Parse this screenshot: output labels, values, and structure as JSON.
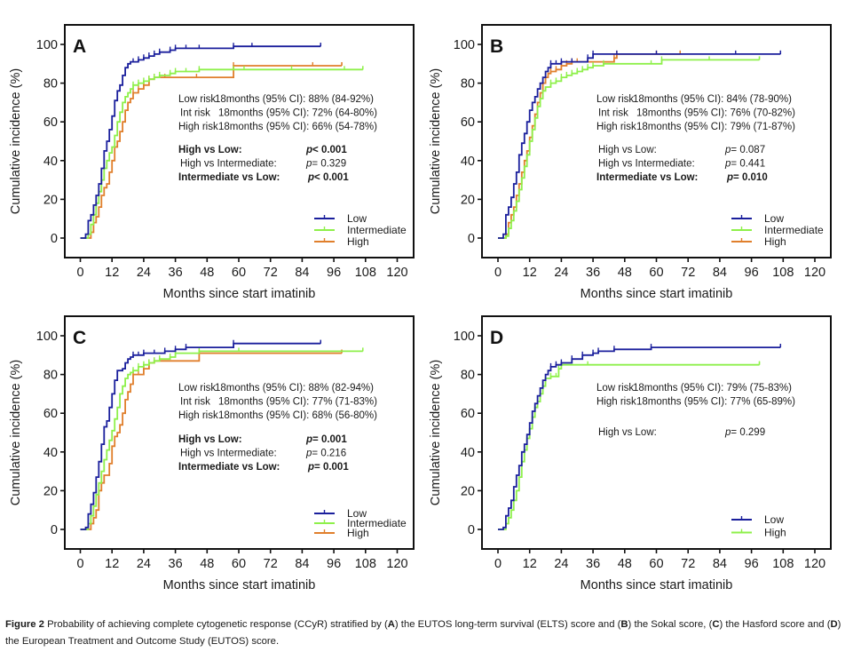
{
  "figure": {
    "caption_label": "Figure 2",
    "caption_parts": [
      {
        "t": " Probability of achieving complete cytogenetic response (CCyR) stratified by (",
        "b": false
      },
      {
        "t": "A",
        "b": true
      },
      {
        "t": ") the EUTOS long-term survival (ELTS) score and (",
        "b": false
      },
      {
        "t": "B",
        "b": true
      },
      {
        "t": ") the Sokal score, (",
        "b": false
      },
      {
        "t": "C",
        "b": true
      },
      {
        "t": ") the Hasford score and (",
        "b": false
      },
      {
        "t": "D",
        "b": true
      },
      {
        "t": ") the European Treatment and Outcome Study (EUTOS) score.",
        "b": false
      }
    ]
  },
  "colors": {
    "Low": "#1a1f9c",
    "Intermediate": "#8ef04a",
    "High": "#e07f2c"
  },
  "chart_data": [
    {
      "type": "line",
      "panel": "A",
      "xlabel": "Months since start imatinib",
      "ylabel": "Cumulative incidence (%)",
      "xlim": [
        0,
        120
      ],
      "ylim": [
        0,
        100
      ],
      "xticks": [
        0,
        12,
        24,
        36,
        48,
        60,
        72,
        84,
        96,
        108,
        120
      ],
      "yticks": [
        0,
        20,
        40,
        60,
        80,
        100
      ],
      "grid": false,
      "legend_position": "bottom-right",
      "legend": [
        "Low",
        "Intermediate",
        "High"
      ],
      "series": [
        {
          "name": "Low",
          "x": [
            0,
            2,
            3,
            4,
            5,
            6,
            7,
            8,
            9,
            10,
            11,
            12,
            13,
            14,
            15,
            16,
            17,
            18,
            19,
            20,
            22,
            24,
            26,
            28,
            30,
            34,
            36,
            40,
            45,
            58,
            65,
            91
          ],
          "y": [
            0,
            2,
            9,
            12,
            17,
            22,
            28,
            36,
            45,
            50,
            56,
            63,
            71,
            76,
            79,
            84,
            88,
            90,
            91,
            91,
            92,
            93,
            94,
            95,
            96,
            97,
            98,
            98,
            98,
            99,
            99,
            99
          ]
        },
        {
          "name": "Intermediate",
          "x": [
            0,
            3,
            4,
            5,
            6,
            7,
            8,
            9,
            10,
            11,
            12,
            13,
            14,
            15,
            16,
            17,
            18,
            19,
            20,
            22,
            24,
            26,
            28,
            30,
            34,
            36,
            40,
            45,
            58,
            62,
            80,
            100,
            107
          ],
          "y": [
            0,
            2,
            7,
            12,
            18,
            24,
            30,
            36,
            40,
            44,
            47,
            53,
            60,
            65,
            70,
            73,
            75,
            77,
            79,
            80,
            81,
            82,
            83,
            84,
            85,
            86,
            86,
            87,
            87,
            87,
            87,
            87,
            87
          ]
        },
        {
          "name": "High",
          "x": [
            0,
            4,
            5,
            6,
            7,
            8,
            9,
            10,
            11,
            12,
            13,
            14,
            15,
            16,
            17,
            18,
            19,
            20,
            22,
            24,
            26,
            28,
            32,
            44,
            58,
            88,
            99
          ],
          "y": [
            0,
            3,
            8,
            11,
            16,
            22,
            26,
            28,
            34,
            40,
            47,
            50,
            55,
            60,
            66,
            70,
            72,
            75,
            77,
            79,
            82,
            83,
            83,
            83,
            89,
            89,
            89
          ]
        }
      ],
      "annotations": {
        "ci_rows": [
          {
            "label": "Low risk",
            "text": "18months (95% CI): 88% (84-92%)"
          },
          {
            "label": "Int risk",
            "text": "18months (95% CI): 72% (64-80%)"
          },
          {
            "label": "High risk",
            "text": "18months (95% CI): 66% (54-78%)"
          }
        ],
        "pvalues": [
          {
            "label": "High vs Low:",
            "p": "p< 0.001",
            "bold": true
          },
          {
            "label": "High vs Intermediate:",
            "p": "p= 0.329",
            "bold": false
          },
          {
            "label": "Intermediate vs Low:",
            "p": "p< 0.001",
            "bold": true
          }
        ]
      }
    },
    {
      "type": "line",
      "panel": "B",
      "xlabel": "Months since start imatinib",
      "ylabel": "Cumulative incidence (%)",
      "xlim": [
        0,
        120
      ],
      "ylim": [
        0,
        100
      ],
      "xticks": [
        0,
        12,
        24,
        36,
        48,
        60,
        72,
        84,
        96,
        108,
        120
      ],
      "yticks": [
        0,
        20,
        40,
        60,
        80,
        100
      ],
      "grid": false,
      "legend_position": "bottom-right",
      "legend": [
        "Low",
        "Intermediate",
        "High"
      ],
      "series": [
        {
          "name": "Low",
          "x": [
            0,
            2,
            3,
            4,
            5,
            6,
            7,
            8,
            9,
            10,
            11,
            12,
            13,
            14,
            15,
            16,
            17,
            18,
            19,
            20,
            22,
            24,
            28,
            34,
            36,
            45,
            60,
            90,
            107
          ],
          "y": [
            0,
            2,
            12,
            16,
            21,
            28,
            34,
            43,
            49,
            54,
            60,
            66,
            70,
            73,
            77,
            80,
            83,
            86,
            88,
            90,
            90,
            91,
            91,
            93,
            95,
            95,
            95,
            95,
            95
          ]
        },
        {
          "name": "Intermediate",
          "x": [
            0,
            3,
            4,
            5,
            6,
            7,
            8,
            9,
            10,
            11,
            12,
            13,
            14,
            15,
            16,
            17,
            18,
            20,
            22,
            24,
            26,
            28,
            30,
            32,
            34,
            36,
            40,
            58,
            62,
            80,
            99
          ],
          "y": [
            0,
            1,
            5,
            9,
            14,
            19,
            25,
            31,
            37,
            43,
            50,
            56,
            62,
            68,
            72,
            76,
            78,
            80,
            81,
            83,
            84,
            85,
            86,
            87,
            88,
            89,
            90,
            90,
            92,
            92,
            92
          ]
        },
        {
          "name": "High",
          "x": [
            0,
            3,
            4,
            5,
            6,
            7,
            8,
            9,
            10,
            11,
            12,
            13,
            14,
            15,
            16,
            17,
            18,
            19,
            20,
            22,
            24,
            26,
            28,
            30,
            34,
            44,
            45,
            60,
            69
          ],
          "y": [
            0,
            2,
            8,
            12,
            16,
            22,
            28,
            34,
            40,
            45,
            52,
            58,
            64,
            70,
            75,
            80,
            83,
            85,
            86,
            87,
            89,
            90,
            91,
            91,
            91,
            93,
            95,
            95,
            95
          ]
        }
      ],
      "annotations": {
        "ci_rows": [
          {
            "label": "Low risk",
            "text": "18months (95% CI): 84% (78-90%)"
          },
          {
            "label": "Int risk",
            "text": "18months (95% CI): 76% (70-82%)"
          },
          {
            "label": "High risk",
            "text": "18months (95% CI): 79% (71-87%)"
          }
        ],
        "pvalues": [
          {
            "label": "High vs Low:",
            "p": "p= 0.087",
            "bold": false
          },
          {
            "label": "High vs Intermediate:",
            "p": "p= 0.441",
            "bold": false
          },
          {
            "label": "Intermediate vs Low:",
            "p": "p= 0.010",
            "bold": true
          }
        ]
      }
    },
    {
      "type": "line",
      "panel": "C",
      "xlabel": "Months since start imatinib",
      "ylabel": "Cumulative incidence (%)",
      "xlim": [
        0,
        120
      ],
      "ylim": [
        0,
        100
      ],
      "xticks": [
        0,
        12,
        24,
        36,
        48,
        60,
        72,
        84,
        96,
        108,
        120
      ],
      "yticks": [
        0,
        20,
        40,
        60,
        80,
        100
      ],
      "grid": false,
      "legend_position": "bottom-right",
      "legend": [
        "Low",
        "Intermediate",
        "High"
      ],
      "series": [
        {
          "name": "Low",
          "x": [
            0,
            2,
            3,
            4,
            5,
            6,
            7,
            8,
            9,
            10,
            11,
            12,
            13,
            14,
            16,
            17,
            18,
            19,
            20,
            22,
            24,
            28,
            32,
            36,
            40,
            58,
            91
          ],
          "y": [
            0,
            1,
            8,
            13,
            19,
            27,
            35,
            44,
            53,
            56,
            63,
            70,
            77,
            82,
            83,
            86,
            88,
            89,
            90,
            90,
            91,
            91,
            92,
            93,
            94,
            96,
            96
          ]
        },
        {
          "name": "Intermediate",
          "x": [
            0,
            3,
            4,
            5,
            6,
            7,
            8,
            9,
            10,
            11,
            12,
            13,
            14,
            15,
            16,
            17,
            18,
            19,
            20,
            22,
            24,
            26,
            28,
            30,
            34,
            36,
            45,
            60,
            107
          ],
          "y": [
            0,
            3,
            7,
            12,
            18,
            24,
            30,
            36,
            41,
            46,
            51,
            57,
            63,
            70,
            74,
            78,
            80,
            81,
            82,
            84,
            85,
            86,
            87,
            88,
            89,
            91,
            92,
            92,
            92
          ]
        },
        {
          "name": "High",
          "x": [
            0,
            4,
            5,
            6,
            7,
            8,
            9,
            10,
            11,
            12,
            13,
            14,
            15,
            16,
            17,
            18,
            19,
            20,
            22,
            24,
            26,
            28,
            30,
            45,
            99
          ],
          "y": [
            0,
            3,
            6,
            10,
            20,
            24,
            28,
            28,
            34,
            43,
            48,
            50,
            54,
            60,
            67,
            71,
            75,
            80,
            80,
            83,
            86,
            87,
            87,
            91,
            91
          ]
        }
      ],
      "annotations": {
        "ci_rows": [
          {
            "label": "Low risk",
            "text": "18months (95% CI): 88% (82-94%)"
          },
          {
            "label": "Int risk",
            "text": "18months (95% CI): 77% (71-83%)"
          },
          {
            "label": "High risk",
            "text": "18months (95% CI): 68% (56-80%)"
          }
        ],
        "pvalues": [
          {
            "label": "High vs Low:",
            "p": "p= 0.001",
            "bold": true
          },
          {
            "label": "High vs Intermediate:",
            "p": "p= 0.216",
            "bold": false
          },
          {
            "label": "Intermediate vs Low:",
            "p": "p= 0.001",
            "bold": true
          }
        ]
      }
    },
    {
      "type": "line",
      "panel": "D",
      "xlabel": "Months since start imatinib",
      "ylabel": "Cumulative incidence (%)",
      "xlim": [
        0,
        120
      ],
      "ylim": [
        0,
        100
      ],
      "xticks": [
        0,
        12,
        24,
        36,
        48,
        60,
        72,
        84,
        96,
        108,
        120
      ],
      "yticks": [
        0,
        20,
        40,
        60,
        80,
        100
      ],
      "grid": false,
      "legend_position": "bottom-right",
      "legend": [
        "Low",
        "High"
      ],
      "series": [
        {
          "name": "Low",
          "x": [
            0,
            2,
            3,
            4,
            5,
            6,
            7,
            8,
            9,
            10,
            11,
            12,
            13,
            14,
            15,
            16,
            17,
            18,
            19,
            20,
            22,
            24,
            28,
            32,
            36,
            38,
            44,
            58,
            107
          ],
          "y": [
            0,
            1,
            7,
            11,
            15,
            22,
            28,
            33,
            40,
            44,
            49,
            55,
            61,
            65,
            69,
            73,
            77,
            80,
            82,
            84,
            85,
            86,
            88,
            90,
            91,
            92,
            93,
            94,
            94
          ]
        },
        {
          "name": "High",
          "x": [
            0,
            3,
            4,
            5,
            6,
            7,
            8,
            9,
            10,
            11,
            12,
            13,
            14,
            15,
            16,
            17,
            18,
            20,
            22,
            23,
            24,
            34,
            99
          ],
          "y": [
            0,
            3,
            6,
            10,
            15,
            20,
            27,
            35,
            41,
            47,
            52,
            58,
            63,
            66,
            70,
            74,
            78,
            79,
            79,
            83,
            85,
            85,
            85
          ]
        }
      ],
      "annotations": {
        "ci_rows": [
          {
            "label": "Low risk",
            "text": "18months (95% CI): 79% (75-83%)"
          },
          {
            "label": "High risk",
            "text": "18months (95% CI): 77% (65-89%)"
          }
        ],
        "pvalues": [
          {
            "label": "High vs Low:",
            "p": "p= 0.299",
            "bold": false
          }
        ]
      }
    }
  ]
}
